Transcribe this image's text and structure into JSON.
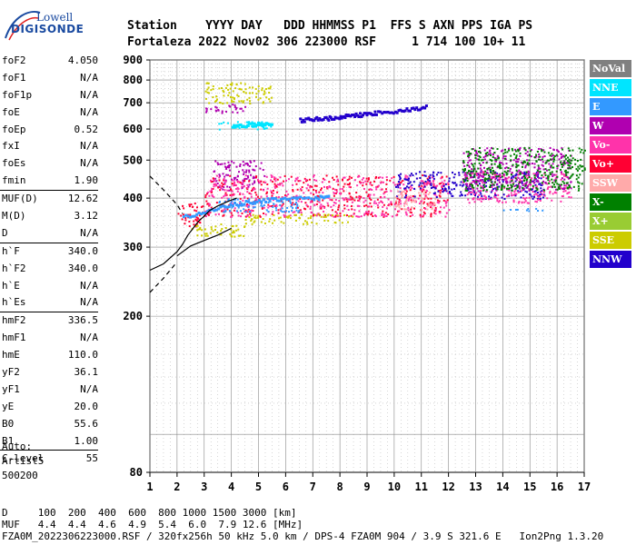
{
  "logo": {
    "top": "Lowell",
    "bottom": "DIGISONDE"
  },
  "header": {
    "line1": "Station    YYYY DAY   DDD HHMMSS P1  FFS S AXN PPS IGA PS",
    "line2": "Fortaleza 2022 Nov02 306 223000 RSF     1 714 100 10+ 11"
  },
  "params": [
    {
      "name": "foF2",
      "value": "4.050"
    },
    {
      "name": "foF1",
      "value": "N/A"
    },
    {
      "name": "foF1p",
      "value": "N/A"
    },
    {
      "name": "foE",
      "value": "N/A"
    },
    {
      "name": "foEp",
      "value": "0.52"
    },
    {
      "name": "fxI",
      "value": "N/A"
    },
    {
      "name": "foEs",
      "value": "N/A"
    },
    {
      "name": "fmin",
      "value": "1.90"
    },
    {
      "sep": true
    },
    {
      "name": "MUF(D)",
      "value": "12.62"
    },
    {
      "name": "M(D)",
      "value": "3.12"
    },
    {
      "name": "D",
      "value": "N/A"
    },
    {
      "sep": true
    },
    {
      "name": "h`F",
      "value": "340.0"
    },
    {
      "name": "h`F2",
      "value": "340.0"
    },
    {
      "name": "h`E",
      "value": "N/A"
    },
    {
      "name": "h`Es",
      "value": "N/A"
    },
    {
      "sep": true
    },
    {
      "name": "hmF2",
      "value": "336.5"
    },
    {
      "name": "hmF1",
      "value": "N/A"
    },
    {
      "name": "hmE",
      "value": "110.0"
    },
    {
      "name": "yF2",
      "value": "36.1"
    },
    {
      "name": "yF1",
      "value": "N/A"
    },
    {
      "name": "yE",
      "value": "20.0"
    },
    {
      "name": "B0",
      "value": "55.6"
    },
    {
      "name": "B1",
      "value": "1.00"
    },
    {
      "sep": true
    },
    {
      "name": "C-level",
      "value": "55"
    }
  ],
  "autoscale": {
    "line1": "Auto:",
    "line2": "Artist5",
    "line3": "500200"
  },
  "legend": [
    {
      "label": "NoVal",
      "color": "#808080"
    },
    {
      "label": "NNE",
      "color": "#00e5ff"
    },
    {
      "label": "E",
      "color": "#3399ff"
    },
    {
      "label": "W",
      "color": "#b000b0"
    },
    {
      "label": "Vo-",
      "color": "#ff33aa"
    },
    {
      "label": "Vo+",
      "color": "#ff0033"
    },
    {
      "label": "SSW",
      "color": "#ffaaaa"
    },
    {
      "label": "X-",
      "color": "#008000"
    },
    {
      "label": "X+",
      "color": "#99cc33"
    },
    {
      "label": "SSE",
      "color": "#cccc00"
    },
    {
      "label": "NNW",
      "color": "#2200cc"
    }
  ],
  "footer": {
    "row1": "D     100  200  400  600  800 1000 1500 3000 [km]",
    "row2": "MUF   4.4  4.4  4.6  4.9  5.4  6.0  7.9 12.6 [MHz]",
    "row3": "FZA0M_2022306223000.RSF / 320fx256h 50 kHz 5.0 km / DPS-4 FZA0M 904 / 3.9 S 321.6 E   Ion2Png 1.3.20"
  },
  "chart_data": {
    "type": "scatter",
    "xlim": [
      1,
      17
    ],
    "ylim": [
      80,
      900
    ],
    "y_scale": "log",
    "x_ticks": [
      1,
      2,
      3,
      4,
      5,
      6,
      7,
      8,
      9,
      10,
      11,
      12,
      13,
      14,
      15,
      16,
      17
    ],
    "y_ticks": [
      80,
      200,
      300,
      400,
      500,
      600,
      700,
      800,
      900
    ],
    "grid": true,
    "legend_position": "right",
    "clusters": [
      {
        "series": "Vo+",
        "x": [
          2.0,
          3.0
        ],
        "y": [
          340,
          390
        ]
      },
      {
        "series": "W",
        "x": [
          3.3,
          5.2
        ],
        "y": [
          420,
          500
        ]
      },
      {
        "series": "Vo+",
        "x": [
          3.0,
          12.0
        ],
        "y": [
          360,
          460
        ]
      },
      {
        "series": "Vo-",
        "x": [
          3.0,
          12.0
        ],
        "y": [
          360,
          460
        ]
      },
      {
        "series": "SSE",
        "x": [
          2.5,
          4.5
        ],
        "y": [
          320,
          345
        ]
      },
      {
        "series": "SSE",
        "x": [
          4.5,
          8.5
        ],
        "y": [
          345,
          365
        ]
      },
      {
        "series": "E",
        "x": [
          3.5,
          6.5
        ],
        "y": [
          370,
          400
        ]
      },
      {
        "series": "NNW",
        "x": [
          10.0,
          15.5
        ],
        "y": [
          400,
          470
        ]
      },
      {
        "series": "Vo-",
        "x": [
          12.5,
          16.5
        ],
        "y": [
          390,
          470
        ]
      },
      {
        "series": "W",
        "x": [
          12.5,
          16.5
        ],
        "y": [
          420,
          540
        ]
      },
      {
        "series": "E",
        "x": [
          14.0,
          15.5
        ],
        "y": [
          370,
          378
        ]
      },
      {
        "series": "SSW",
        "x": [
          10.0,
          11.5
        ],
        "y": [
          375,
          420
        ]
      },
      {
        "series": "X-",
        "x": [
          12.5,
          17.0
        ],
        "y": [
          420,
          540
        ]
      },
      {
        "series": "NNE",
        "x": [
          3.5,
          5.5
        ],
        "y": [
          600,
          630
        ]
      },
      {
        "series": "SSE",
        "x": [
          3.0,
          5.5
        ],
        "y": [
          700,
          790
        ]
      },
      {
        "series": "W",
        "x": [
          3.0,
          4.5
        ],
        "y": [
          660,
          700
        ]
      }
    ],
    "traces": [
      {
        "series": "NNW",
        "x": [
          6.5,
          7.0,
          7.5,
          7.9,
          8.3,
          8.8,
          9.3,
          10.0,
          10.6,
          11.2
        ],
        "y": [
          636,
          640,
          643,
          648,
          652,
          657,
          663,
          670,
          678,
          688
        ]
      },
      {
        "series": "NNE",
        "x": [
          4.0,
          4.5,
          5.0,
          5.5
        ],
        "y": [
          612,
          618,
          621,
          623
        ]
      },
      {
        "series": "E",
        "x": [
          2.2,
          3.0,
          3.8,
          4.5,
          5.3,
          6.0,
          7.0,
          7.6
        ],
        "y": [
          360,
          372,
          385,
          392,
          398,
          400,
          403,
          405
        ]
      }
    ],
    "profile": {
      "solid": {
        "x": [
          1.0,
          1.5,
          2.0,
          2.2,
          2.4,
          2.8,
          3.0,
          3.2,
          3.5,
          3.9,
          4.2
        ],
        "y": [
          262,
          272,
          292,
          305,
          322,
          350,
          360,
          372,
          382,
          393,
          400
        ]
      },
      "solid_lower": {
        "x": [
          2.0,
          2.5,
          3.0,
          3.5,
          4.0
        ],
        "y": [
          285,
          302,
          312,
          322,
          335
        ]
      },
      "dashed_upper": {
        "x": [
          1.0,
          1.5,
          2.0,
          2.2
        ],
        "y": [
          455,
          420,
          385,
          365
        ]
      },
      "dashed_lower": {
        "x": [
          1.0,
          1.5,
          2.0
        ],
        "y": [
          230,
          250,
          275
        ]
      }
    }
  }
}
